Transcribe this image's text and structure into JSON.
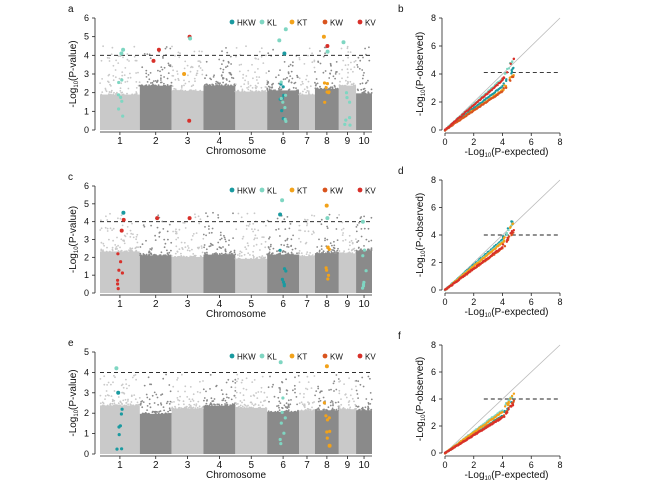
{
  "legend": [
    {
      "label": "HKW",
      "color": "#1a9aa0"
    },
    {
      "label": "KL",
      "color": "#7fd6c2"
    },
    {
      "label": "KT",
      "color": "#f2a21a"
    },
    {
      "label": "KW",
      "color": "#d9541e"
    },
    {
      "label": "KV",
      "color": "#d8302a"
    }
  ],
  "chart_data": [
    {
      "type": "scatter",
      "panel": "a",
      "ylabel": "-Log10(P-value)",
      "xlabel": "Chromosome",
      "categories": [
        "1",
        "2",
        "3",
        "4",
        "5",
        "6",
        "7",
        "8",
        "9",
        "10"
      ],
      "ylim": [
        0,
        6
      ],
      "yticks": [
        0,
        1,
        2,
        3,
        4,
        5,
        6
      ],
      "threshold": 4,
      "points": [
        {
          "chr": 1,
          "y": 4.3,
          "series": "KL"
        },
        {
          "chr": 1,
          "y": 4.1,
          "series": "KL"
        },
        {
          "chr": 2,
          "y": 4.3,
          "series": "KV"
        },
        {
          "chr": 2,
          "y": 3.7,
          "series": "KV"
        },
        {
          "chr": 3,
          "y": 5.0,
          "series": "KV"
        },
        {
          "chr": 3,
          "y": 4.9,
          "series": "KL"
        },
        {
          "chr": 3,
          "y": 3.0,
          "series": "KT"
        },
        {
          "chr": 3,
          "y": 0.5,
          "series": "KV"
        },
        {
          "chr": 6,
          "y": 5.4,
          "series": "KL"
        },
        {
          "chr": 6,
          "y": 4.1,
          "series": "HKW"
        },
        {
          "chr": 6,
          "y": 4.8,
          "series": "KL"
        },
        {
          "chr": 8,
          "y": 5.0,
          "series": "KT"
        },
        {
          "chr": 8,
          "y": 4.5,
          "series": "KV"
        },
        {
          "chr": 8,
          "y": 4.2,
          "series": "KL"
        },
        {
          "chr": 9,
          "y": 4.7,
          "series": "KL"
        }
      ]
    },
    {
      "type": "scatter",
      "panel": "b",
      "xlabel": "-Log10(P-expected)",
      "ylabel": "-Log10(P-observed)",
      "xlim": [
        0,
        8
      ],
      "ylim": [
        0,
        8
      ],
      "xticks": [
        0,
        2,
        4,
        6,
        8
      ],
      "yticks": [
        0,
        2,
        4,
        6,
        8
      ],
      "threshold": 4.1,
      "series": [
        {
          "name": "HKW",
          "color": "#1a9aa0",
          "end": [
            4.8,
            4.4
          ]
        },
        {
          "name": "KL",
          "color": "#7fd6c2",
          "end": [
            4.8,
            5.2
          ]
        },
        {
          "name": "KT",
          "color": "#f2a21a",
          "end": [
            4.8,
            4.0
          ]
        },
        {
          "name": "KW",
          "color": "#d9541e",
          "end": [
            4.8,
            3.9
          ]
        },
        {
          "name": "KV",
          "color": "#d8302a",
          "end": [
            4.8,
            5.0
          ]
        }
      ]
    },
    {
      "type": "scatter",
      "panel": "c",
      "ylabel": "-Log10(P-value)",
      "xlabel": "Chromosome",
      "categories": [
        "1",
        "2",
        "3",
        "4",
        "5",
        "6",
        "7",
        "8",
        "9",
        "10"
      ],
      "ylim": [
        0,
        6
      ],
      "yticks": [
        0,
        1,
        2,
        3,
        4,
        5,
        6
      ],
      "threshold": 4,
      "points": [
        {
          "chr": 1,
          "y": 4.5,
          "series": "HKW"
        },
        {
          "chr": 1,
          "y": 4.1,
          "series": "KV"
        },
        {
          "chr": 1,
          "y": 3.5,
          "series": "KV"
        },
        {
          "chr": 2,
          "y": 4.2,
          "series": "KV"
        },
        {
          "chr": 3,
          "y": 4.2,
          "series": "KV"
        },
        {
          "chr": 6,
          "y": 5.2,
          "series": "KL"
        },
        {
          "chr": 6,
          "y": 4.4,
          "series": "HKW"
        },
        {
          "chr": 8,
          "y": 4.9,
          "series": "KT"
        },
        {
          "chr": 8,
          "y": 4.2,
          "series": "KL"
        },
        {
          "chr": 10,
          "y": 4.0,
          "series": "KL"
        }
      ]
    },
    {
      "type": "scatter",
      "panel": "d",
      "xlabel": "-Log10(P-expected)",
      "ylabel": "-Log10(P-observed)",
      "xlim": [
        0,
        8
      ],
      "ylim": [
        0,
        8
      ],
      "xticks": [
        0,
        2,
        4,
        6,
        8
      ],
      "yticks": [
        0,
        2,
        4,
        6,
        8
      ],
      "threshold": 4,
      "series": [
        {
          "name": "HKW",
          "color": "#1a9aa0",
          "end": [
            4.8,
            5.2
          ]
        },
        {
          "name": "KL",
          "color": "#7fd6c2",
          "end": [
            4.8,
            5.0
          ]
        },
        {
          "name": "KT",
          "color": "#f2a21a",
          "end": [
            4.8,
            4.9
          ]
        },
        {
          "name": "KW",
          "color": "#d9541e",
          "end": [
            4.8,
            4.3
          ]
        },
        {
          "name": "KV",
          "color": "#d8302a",
          "end": [
            4.8,
            4.4
          ]
        }
      ]
    },
    {
      "type": "scatter",
      "panel": "e",
      "ylabel": "-Log10(P-value)",
      "xlabel": "Chromosome",
      "categories": [
        "1",
        "2",
        "3",
        "4",
        "5",
        "6",
        "7",
        "8",
        "9",
        "10"
      ],
      "ylim": [
        0,
        5
      ],
      "yticks": [
        0,
        1,
        2,
        3,
        4,
        5
      ],
      "threshold": 4,
      "points": [
        {
          "chr": 1,
          "y": 4.2,
          "series": "KL"
        },
        {
          "chr": 1,
          "y": 3.0,
          "series": "HKW"
        },
        {
          "chr": 6,
          "y": 4.5,
          "series": "KL"
        },
        {
          "chr": 8,
          "y": 4.3,
          "series": "KT"
        },
        {
          "chr": 8,
          "y": 0.4,
          "series": "KT"
        }
      ]
    },
    {
      "type": "scatter",
      "panel": "f",
      "xlabel": "-Log10(P-expected)",
      "ylabel": "-Log10(P-observed)",
      "xlim": [
        0,
        8
      ],
      "ylim": [
        0,
        8
      ],
      "xticks": [
        0,
        2,
        4,
        6,
        8
      ],
      "yticks": [
        0,
        2,
        4,
        6,
        8
      ],
      "threshold": 4,
      "series": [
        {
          "name": "HKW",
          "color": "#1a9aa0",
          "end": [
            4.8,
            3.9
          ]
        },
        {
          "name": "KL",
          "color": "#7fd6c2",
          "end": [
            4.8,
            4.5
          ]
        },
        {
          "name": "KT",
          "color": "#f2a21a",
          "end": [
            4.8,
            4.3
          ]
        },
        {
          "name": "KW",
          "color": "#d9541e",
          "end": [
            4.8,
            3.8
          ]
        },
        {
          "name": "KV",
          "color": "#d8302a",
          "end": [
            4.8,
            3.7
          ]
        }
      ]
    }
  ]
}
